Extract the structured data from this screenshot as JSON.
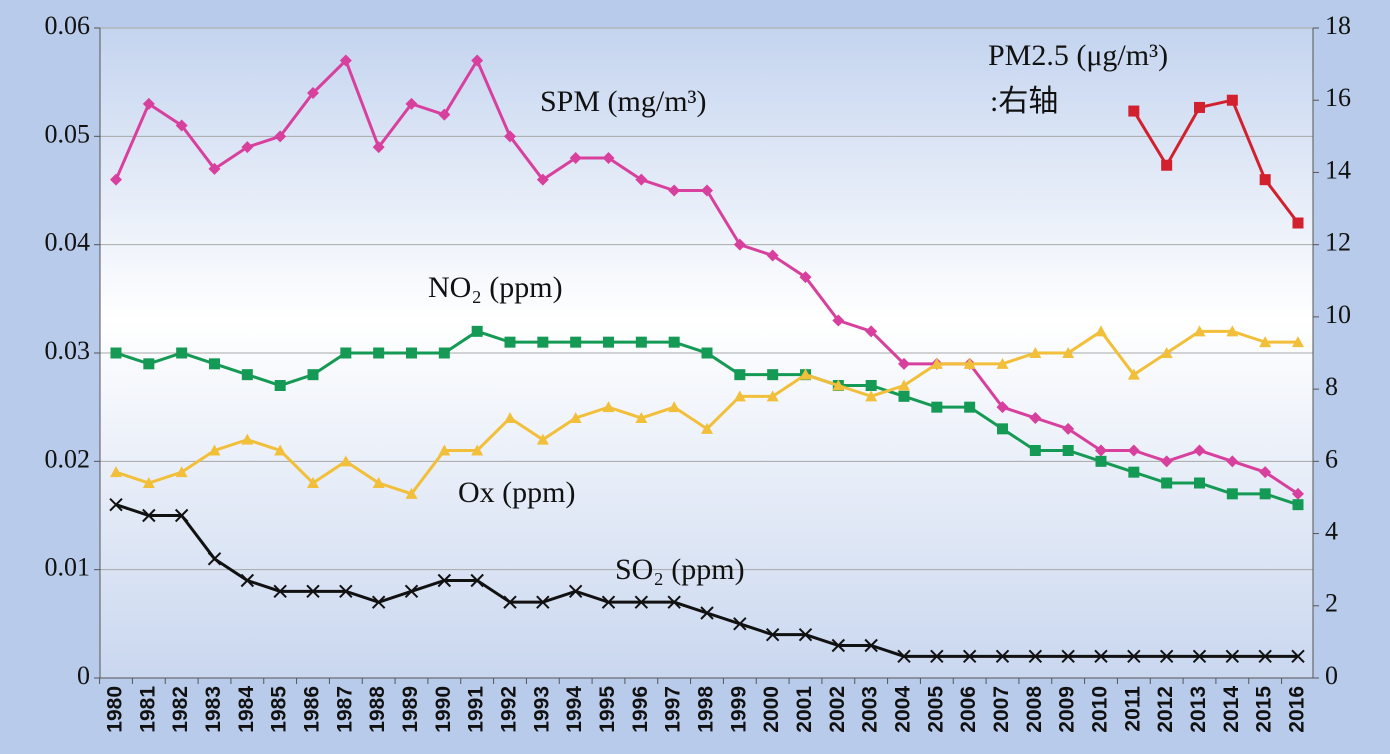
{
  "chart_data": {
    "type": "line",
    "categories": [
      "1980",
      "1981",
      "1982",
      "1983",
      "1984",
      "1985",
      "1986",
      "1987",
      "1988",
      "1989",
      "1990",
      "1991",
      "1992",
      "1993",
      "1994",
      "1995",
      "1996",
      "1997",
      "1998",
      "1999",
      "2000",
      "2001",
      "2002",
      "2003",
      "2004",
      "2005",
      "2006",
      "2007",
      "2008",
      "2009",
      "2010",
      "2011",
      "2012",
      "2013",
      "2014",
      "2015",
      "2016"
    ],
    "ylim": [
      0,
      0.06
    ],
    "yticks": [
      0,
      0.01,
      0.02,
      0.03,
      0.04,
      0.05,
      0.06
    ],
    "y2lim": [
      0,
      18
    ],
    "y2ticks": [
      0,
      2,
      4,
      6,
      8,
      10,
      12,
      14,
      16,
      18
    ],
    "grid": true,
    "annotations": [
      ":右轴"
    ],
    "series": [
      {
        "name": "SPM (mg/m³)",
        "color": "#d8409e",
        "marker": "diamond",
        "values": [
          0.046,
          0.053,
          0.051,
          0.047,
          0.049,
          0.05,
          0.054,
          0.057,
          0.049,
          0.053,
          0.052,
          0.057,
          0.05,
          0.046,
          0.048,
          0.048,
          0.046,
          0.045,
          0.045,
          0.04,
          0.039,
          0.037,
          0.033,
          0.032,
          0.029,
          0.029,
          0.029,
          0.025,
          0.024,
          0.023,
          0.021,
          0.021,
          0.02,
          0.021,
          0.02,
          0.019,
          0.017
        ]
      },
      {
        "name": "NO₂ (ppm)",
        "color": "#159a55",
        "marker": "square",
        "values": [
          0.03,
          0.029,
          0.03,
          0.029,
          0.028,
          0.027,
          0.028,
          0.03,
          0.03,
          0.03,
          0.03,
          0.032,
          0.031,
          0.031,
          0.031,
          0.031,
          0.031,
          0.031,
          0.03,
          0.028,
          0.028,
          0.028,
          0.027,
          0.027,
          0.026,
          0.025,
          0.025,
          0.023,
          0.021,
          0.021,
          0.02,
          0.019,
          0.018,
          0.018,
          0.017,
          0.017,
          0.016
        ]
      },
      {
        "name": "Ox (ppm)",
        "color": "#f2bf3a",
        "marker": "triangle",
        "values": [
          0.019,
          0.018,
          0.019,
          0.021,
          0.022,
          0.021,
          0.018,
          0.02,
          0.018,
          0.017,
          0.021,
          0.021,
          0.024,
          0.022,
          0.024,
          0.025,
          0.024,
          0.025,
          0.023,
          0.026,
          0.026,
          0.028,
          0.027,
          0.026,
          0.027,
          0.029,
          0.029,
          0.029,
          0.03,
          0.03,
          0.032,
          0.028,
          0.03,
          0.032,
          0.032,
          0.031,
          0.031
        ]
      },
      {
        "name": "SO₂ (ppm)",
        "color": "#111111",
        "marker": "x",
        "values": [
          0.016,
          0.015,
          0.015,
          0.011,
          0.009,
          0.008,
          0.008,
          0.008,
          0.007,
          0.008,
          0.009,
          0.009,
          0.007,
          0.007,
          0.008,
          0.007,
          0.007,
          0.007,
          0.006,
          0.005,
          0.004,
          0.004,
          0.003,
          0.003,
          0.002,
          0.002,
          0.002,
          0.002,
          0.002,
          0.002,
          0.002,
          0.002,
          0.002,
          0.002,
          0.002,
          0.002,
          0.002
        ]
      },
      {
        "name": "PM2.5 (μg/m³)",
        "color": "#d2202e",
        "marker": "square",
        "axis": "y2",
        "values": [
          null,
          null,
          null,
          null,
          null,
          null,
          null,
          null,
          null,
          null,
          null,
          null,
          null,
          null,
          null,
          null,
          null,
          null,
          null,
          null,
          null,
          null,
          null,
          null,
          null,
          null,
          null,
          null,
          null,
          null,
          null,
          15.7,
          14.2,
          15.8,
          16.0,
          13.8,
          12.6
        ]
      }
    ]
  }
}
